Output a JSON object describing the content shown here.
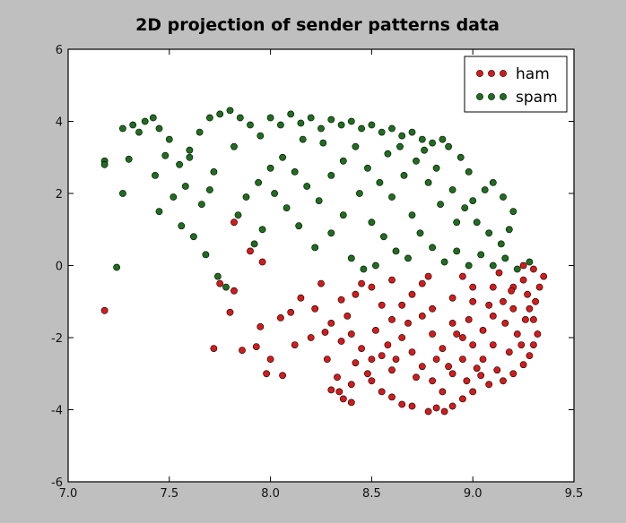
{
  "chart_data": {
    "type": "scatter",
    "title": "2D projection of sender patterns data",
    "xlabel": "",
    "ylabel": "",
    "xlim": [
      7.0,
      9.5
    ],
    "ylim": [
      -6,
      6
    ],
    "xticks": [
      "7.0",
      "7.5",
      "8.0",
      "8.5",
      "9.0",
      "9.5"
    ],
    "yticks": [
      "-6",
      "-4",
      "-2",
      "0",
      "2",
      "4",
      "6"
    ],
    "grid": false,
    "legend": "top-right",
    "series": [
      {
        "name": "ham",
        "color": "#d61a1a",
        "points": [
          [
            7.18,
            -1.25
          ],
          [
            7.72,
            -2.3
          ],
          [
            7.86,
            -2.35
          ],
          [
            7.93,
            -2.25
          ],
          [
            7.98,
            -3.0
          ],
          [
            8.06,
            -3.05
          ],
          [
            7.8,
            -1.3
          ],
          [
            7.82,
            1.2
          ],
          [
            7.82,
            -0.7
          ],
          [
            7.9,
            0.4
          ],
          [
            7.96,
            0.1
          ],
          [
            8.05,
            -1.45
          ],
          [
            8.1,
            -1.3
          ],
          [
            8.2,
            -2.0
          ],
          [
            8.28,
            -2.6
          ],
          [
            8.3,
            -3.45
          ],
          [
            8.34,
            -3.5
          ],
          [
            8.36,
            -3.7
          ],
          [
            8.4,
            -3.8
          ],
          [
            8.42,
            -0.8
          ],
          [
            8.25,
            -0.5
          ],
          [
            8.15,
            -0.9
          ],
          [
            7.75,
            -0.5
          ],
          [
            7.95,
            -1.7
          ],
          [
            8.0,
            -2.6
          ],
          [
            8.12,
            -2.2
          ],
          [
            8.5,
            -3.2
          ],
          [
            8.55,
            -3.5
          ],
          [
            8.6,
            -3.65
          ],
          [
            8.65,
            -3.85
          ],
          [
            8.7,
            -3.9
          ],
          [
            8.78,
            -4.05
          ],
          [
            8.82,
            -3.95
          ],
          [
            8.86,
            -4.05
          ],
          [
            8.9,
            -3.9
          ],
          [
            8.95,
            -3.7
          ],
          [
            9.0,
            -3.5
          ],
          [
            9.08,
            -3.3
          ],
          [
            9.15,
            -3.2
          ],
          [
            9.2,
            -3.0
          ],
          [
            9.25,
            -2.75
          ],
          [
            9.28,
            -2.5
          ],
          [
            9.3,
            -2.2
          ],
          [
            9.32,
            -1.9
          ],
          [
            9.3,
            -1.5
          ],
          [
            9.31,
            -1.0
          ],
          [
            9.33,
            -0.6
          ],
          [
            9.35,
            -0.3
          ],
          [
            9.3,
            -0.1
          ],
          [
            9.25,
            0.0
          ],
          [
            8.6,
            -2.9
          ],
          [
            8.5,
            -2.6
          ],
          [
            8.45,
            -2.3
          ],
          [
            8.4,
            -1.9
          ],
          [
            8.38,
            -1.4
          ],
          [
            8.35,
            -0.95
          ],
          [
            8.45,
            -0.5
          ],
          [
            8.5,
            -0.6
          ],
          [
            8.55,
            -1.1
          ],
          [
            8.6,
            -1.5
          ],
          [
            8.65,
            -2.0
          ],
          [
            8.7,
            -2.4
          ],
          [
            8.75,
            -2.8
          ],
          [
            8.8,
            -3.2
          ],
          [
            8.85,
            -3.5
          ],
          [
            8.9,
            -3.0
          ],
          [
            8.95,
            -2.6
          ],
          [
            9.0,
            -2.2
          ],
          [
            9.05,
            -1.8
          ],
          [
            9.1,
            -1.4
          ],
          [
            9.15,
            -1.0
          ],
          [
            9.2,
            -0.6
          ],
          [
            9.25,
            -0.4
          ],
          [
            8.7,
            -0.8
          ],
          [
            8.8,
            -1.2
          ],
          [
            8.9,
            -1.6
          ],
          [
            9.0,
            -1.0
          ],
          [
            9.1,
            -0.6
          ],
          [
            8.6,
            -0.4
          ],
          [
            8.75,
            -0.5
          ],
          [
            8.95,
            -0.3
          ],
          [
            9.05,
            -2.6
          ],
          [
            9.12,
            -2.9
          ],
          [
            9.18,
            -2.4
          ],
          [
            9.22,
            -1.9
          ],
          [
            9.26,
            -1.5
          ],
          [
            9.2,
            -1.2
          ],
          [
            8.85,
            -2.3
          ],
          [
            8.92,
            -1.9
          ],
          [
            8.98,
            -1.5
          ],
          [
            8.68,
            -1.6
          ],
          [
            8.58,
            -2.2
          ],
          [
            8.52,
            -1.8
          ],
          [
            8.62,
            -2.6
          ],
          [
            8.72,
            -3.1
          ],
          [
            8.82,
            -2.6
          ],
          [
            8.48,
            -3.0
          ],
          [
            8.42,
            -2.7
          ],
          [
            8.3,
            -1.6
          ],
          [
            8.22,
            -1.2
          ],
          [
            8.35,
            -2.1
          ],
          [
            8.27,
            -1.85
          ],
          [
            8.4,
            -3.3
          ],
          [
            8.33,
            -3.1
          ],
          [
            8.8,
            -1.9
          ],
          [
            8.88,
            -2.8
          ],
          [
            8.97,
            -3.2
          ],
          [
            9.02,
            -2.85
          ],
          [
            9.1,
            -2.2
          ],
          [
            9.16,
            -1.6
          ],
          [
            9.24,
            -2.2
          ],
          [
            9.28,
            -1.2
          ],
          [
            9.27,
            -0.8
          ],
          [
            9.13,
            -0.2
          ],
          [
            9.0,
            -0.6
          ],
          [
            8.78,
            -0.3
          ],
          [
            8.65,
            -1.1
          ],
          [
            8.9,
            -0.9
          ],
          [
            8.55,
            -2.5
          ],
          [
            8.75,
            -1.4
          ],
          [
            8.95,
            -2.0
          ],
          [
            9.08,
            -1.1
          ],
          [
            9.19,
            -0.7
          ],
          [
            9.04,
            -3.05
          ]
        ]
      },
      {
        "name": "spam",
        "color": "#1e6e1e",
        "points": [
          [
            7.18,
            2.9
          ],
          [
            7.18,
            2.8
          ],
          [
            7.24,
            -0.05
          ],
          [
            7.27,
            2.0
          ],
          [
            7.27,
            3.8
          ],
          [
            7.32,
            3.9
          ],
          [
            7.35,
            3.7
          ],
          [
            7.38,
            4.0
          ],
          [
            7.42,
            4.1
          ],
          [
            7.45,
            3.8
          ],
          [
            7.5,
            3.5
          ],
          [
            7.48,
            3.05
          ],
          [
            7.3,
            2.95
          ],
          [
            7.43,
            2.5
          ],
          [
            7.55,
            2.8
          ],
          [
            7.6,
            3.2
          ],
          [
            7.65,
            3.7
          ],
          [
            7.7,
            4.1
          ],
          [
            7.75,
            4.2
          ],
          [
            7.8,
            4.3
          ],
          [
            7.85,
            4.1
          ],
          [
            7.9,
            3.9
          ],
          [
            7.95,
            3.6
          ],
          [
            8.0,
            4.1
          ],
          [
            8.05,
            3.9
          ],
          [
            8.1,
            4.2
          ],
          [
            8.15,
            3.95
          ],
          [
            8.2,
            4.1
          ],
          [
            8.25,
            3.8
          ],
          [
            8.3,
            4.05
          ],
          [
            8.35,
            3.9
          ],
          [
            8.4,
            4.0
          ],
          [
            8.45,
            3.8
          ],
          [
            8.5,
            3.9
          ],
          [
            8.55,
            3.7
          ],
          [
            8.6,
            3.8
          ],
          [
            8.65,
            3.6
          ],
          [
            8.7,
            3.7
          ],
          [
            8.75,
            3.5
          ],
          [
            8.8,
            3.4
          ],
          [
            8.85,
            3.5
          ],
          [
            7.45,
            1.5
          ],
          [
            7.52,
            1.9
          ],
          [
            7.58,
            2.2
          ],
          [
            7.62,
            0.8
          ],
          [
            7.68,
            0.3
          ],
          [
            7.74,
            -0.3
          ],
          [
            7.78,
            -0.6
          ],
          [
            7.84,
            1.4
          ],
          [
            7.88,
            1.9
          ],
          [
            7.94,
            2.3
          ],
          [
            8.0,
            2.7
          ],
          [
            8.06,
            3.0
          ],
          [
            8.12,
            2.6
          ],
          [
            8.18,
            2.2
          ],
          [
            8.24,
            1.8
          ],
          [
            8.3,
            2.5
          ],
          [
            8.36,
            2.9
          ],
          [
            8.42,
            3.3
          ],
          [
            8.48,
            2.7
          ],
          [
            8.54,
            2.3
          ],
          [
            8.6,
            1.9
          ],
          [
            8.66,
            2.5
          ],
          [
            8.72,
            2.9
          ],
          [
            8.78,
            2.3
          ],
          [
            8.84,
            1.7
          ],
          [
            8.9,
            2.1
          ],
          [
            8.96,
            1.6
          ],
          [
            9.02,
            1.2
          ],
          [
            9.08,
            0.9
          ],
          [
            9.14,
            0.6
          ],
          [
            9.18,
            1.0
          ],
          [
            9.2,
            1.5
          ],
          [
            9.15,
            1.9
          ],
          [
            9.1,
            2.3
          ],
          [
            8.98,
            2.6
          ],
          [
            8.94,
            3.0
          ],
          [
            8.88,
            3.3
          ],
          [
            8.5,
            1.2
          ],
          [
            8.56,
            0.8
          ],
          [
            8.62,
            0.4
          ],
          [
            8.68,
            0.2
          ],
          [
            8.74,
            0.9
          ],
          [
            8.8,
            0.5
          ],
          [
            8.86,
            0.1
          ],
          [
            8.92,
            0.4
          ],
          [
            8.98,
            0.0
          ],
          [
            9.04,
            0.3
          ],
          [
            9.1,
            0.0
          ],
          [
            9.16,
            0.2
          ],
          [
            9.22,
            -0.1
          ],
          [
            9.28,
            0.1
          ],
          [
            8.36,
            1.4
          ],
          [
            8.3,
            0.9
          ],
          [
            8.22,
            0.5
          ],
          [
            8.14,
            1.1
          ],
          [
            8.08,
            1.6
          ],
          [
            8.02,
            2.0
          ],
          [
            7.96,
            1.0
          ],
          [
            7.92,
            0.6
          ],
          [
            8.4,
            0.2
          ],
          [
            8.46,
            -0.1
          ],
          [
            8.52,
            0.0
          ],
          [
            8.44,
            2.0
          ],
          [
            8.58,
            3.1
          ],
          [
            8.7,
            1.4
          ],
          [
            8.82,
            2.7
          ],
          [
            8.76,
            3.2
          ],
          [
            8.64,
            3.3
          ],
          [
            7.72,
            2.6
          ],
          [
            7.66,
            1.7
          ],
          [
            7.56,
            1.1
          ],
          [
            7.82,
            3.3
          ],
          [
            7.6,
            3.0
          ],
          [
            7.7,
            2.1
          ],
          [
            8.26,
            3.4
          ],
          [
            8.16,
            3.5
          ],
          [
            9.0,
            1.8
          ],
          [
            9.06,
            2.1
          ],
          [
            8.92,
            1.2
          ]
        ]
      }
    ]
  }
}
